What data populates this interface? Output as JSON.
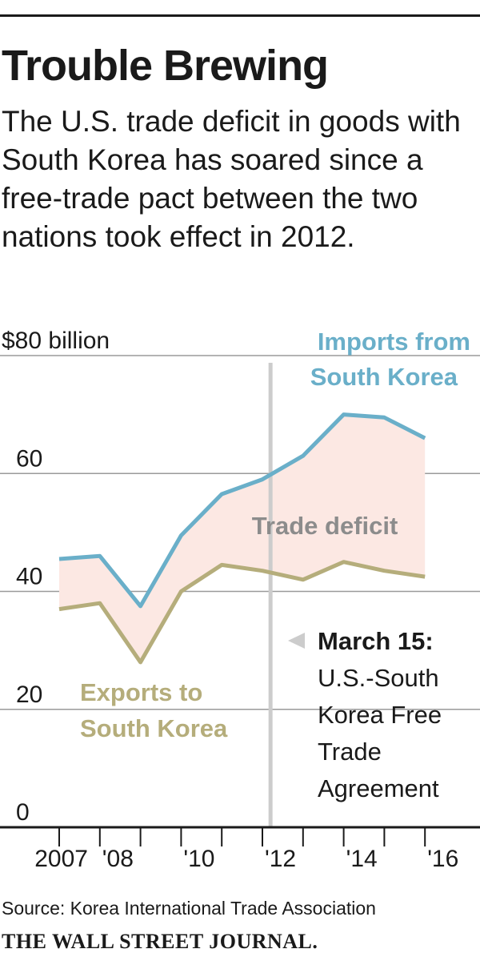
{
  "title": "Trouble Brewing",
  "subtitle": "The U.S. trade deficit in goods with South Korea has soared since a free-trade pact between the two nations took effect in 2012.",
  "source": "Source: Korea International Trade Association",
  "brand": "THE WALL STREET JOURNAL.",
  "colors": {
    "imports": "#6aafc9",
    "exports": "#b5ad7b",
    "deficit_fill": "#fce8e3",
    "marker": "#cccccc",
    "grid": "#9a9a9a"
  },
  "chart_data": {
    "type": "area",
    "x": [
      2007,
      2008,
      2009,
      2010,
      2011,
      2012,
      2013,
      2014,
      2015,
      2016
    ],
    "x_tick_labels": [
      "2007",
      "'08",
      "'10",
      "'12",
      "'14",
      "'16"
    ],
    "x_tick_values": [
      2007,
      2008,
      2010,
      2012,
      2014,
      2016
    ],
    "ylim": [
      0,
      80
    ],
    "y_ticks": [
      {
        "value": 80,
        "label": "$80 billion"
      },
      {
        "value": 60,
        "label": "60"
      },
      {
        "value": 40,
        "label": "40"
      },
      {
        "value": 20,
        "label": "20"
      },
      {
        "value": 0,
        "label": "0"
      }
    ],
    "series": [
      {
        "name": "Imports from South Korea",
        "label_lines": [
          "Imports from",
          "South Korea"
        ],
        "values": [
          45.5,
          46.0,
          37.5,
          49.5,
          56.5,
          59.0,
          63.0,
          70.0,
          69.5,
          66.0
        ]
      },
      {
        "name": "Exports to South Korea",
        "label_lines": [
          "Exports to",
          "South Korea"
        ],
        "values": [
          37.0,
          38.0,
          28.0,
          40.0,
          44.5,
          43.5,
          42.0,
          45.0,
          43.5,
          42.5
        ]
      }
    ],
    "deficit_label": "Trade deficit",
    "annotation": {
      "x": 2012.2,
      "title": "March 15:",
      "lines": [
        "U.S.-South",
        "Korea Free",
        "Trade",
        "Agreement"
      ]
    }
  }
}
